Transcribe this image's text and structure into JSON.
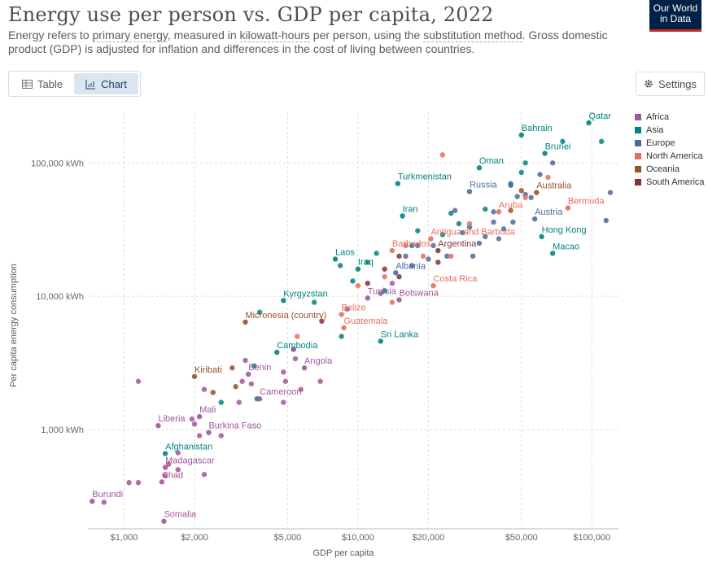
{
  "header": {
    "title": "Energy use per person vs. GDP per capita, 2022",
    "subtitle_parts": [
      "Energy refers to ",
      "primary energy",
      ", measured in ",
      "kilowatt-hours",
      " per person, using the ",
      "substitution method",
      ". Gross domestic product (GDP) is adjusted for inflation and differences in the cost of living between countries."
    ],
    "logo_line1": "Our World",
    "logo_line2": "in Data"
  },
  "tabs": [
    {
      "label": "Table",
      "icon": "table-icon",
      "active": false
    },
    {
      "label": "Chart",
      "icon": "chart-icon",
      "active": true
    }
  ],
  "settings_label": "Settings",
  "colors": {
    "Africa": "#a2559c",
    "Asia": "#00847e",
    "Europe": "#4c6a9c",
    "North America": "#e56e5a",
    "Oceania": "#9a5129",
    "South America": "#883039"
  },
  "chart_data": {
    "type": "scatter",
    "title": "Energy use per person vs. GDP per capita, 2022",
    "xlabel": "GDP per capita",
    "ylabel": "Per capita energy consumption",
    "x_scale": "log",
    "y_scale": "log",
    "xlim": [
      700,
      130000
    ],
    "ylim": [
      180,
      240000
    ],
    "x_ticks": [
      {
        "value": 1000,
        "label": "$1,000"
      },
      {
        "value": 2000,
        "label": "$2,000"
      },
      {
        "value": 5000,
        "label": "$5,000"
      },
      {
        "value": 10000,
        "label": "$10,000"
      },
      {
        "value": 20000,
        "label": "$20,000"
      },
      {
        "value": 50000,
        "label": "$50,000"
      },
      {
        "value": 100000,
        "label": "$100,000"
      }
    ],
    "y_ticks": [
      {
        "value": 1000,
        "label": "1,000 kWh"
      },
      {
        "value": 10000,
        "label": "10,000 kWh"
      },
      {
        "value": 100000,
        "label": "100,000 kWh"
      }
    ],
    "grid": true,
    "legend_position": "right",
    "legend": [
      "Africa",
      "Asia",
      "Europe",
      "North America",
      "Oceania",
      "South America"
    ],
    "labeled_points": [
      {
        "name": "Qatar",
        "region": "Asia",
        "x": 97000,
        "y": 200000
      },
      {
        "name": "Bahrain",
        "region": "Asia",
        "x": 50000,
        "y": 162000
      },
      {
        "name": "Brunei",
        "region": "Asia",
        "x": 63000,
        "y": 118000
      },
      {
        "name": "Oman",
        "region": "Asia",
        "x": 33000,
        "y": 92000
      },
      {
        "name": "Turkmenistan",
        "region": "Asia",
        "x": 14800,
        "y": 70000
      },
      {
        "name": "Russia",
        "region": "Europe",
        "x": 30000,
        "y": 61000
      },
      {
        "name": "Australia",
        "region": "Oceania",
        "x": 58000,
        "y": 60000
      },
      {
        "name": "Aruba",
        "region": "North America",
        "x": 40000,
        "y": 43000
      },
      {
        "name": "Bermuda",
        "region": "North America",
        "x": 79000,
        "y": 46000
      },
      {
        "name": "Austria",
        "region": "Europe",
        "x": 57000,
        "y": 38000
      },
      {
        "name": "Iran",
        "region": "Asia",
        "x": 15500,
        "y": 40000
      },
      {
        "name": "Antigua and Barbuda",
        "region": "North America",
        "x": 20500,
        "y": 27000
      },
      {
        "name": "Hong Kong",
        "region": "Asia",
        "x": 61000,
        "y": 28000
      },
      {
        "name": "Barbados",
        "region": "North America",
        "x": 14000,
        "y": 22000
      },
      {
        "name": "Argentina",
        "region": "South America",
        "x": 22000,
        "y": 22000
      },
      {
        "name": "Macao",
        "region": "Asia",
        "x": 68000,
        "y": 21000
      },
      {
        "name": "Laos",
        "region": "Asia",
        "x": 8000,
        "y": 19000
      },
      {
        "name": "Iraq",
        "region": "Asia",
        "x": 10000,
        "y": 16000
      },
      {
        "name": "Albania",
        "region": "Europe",
        "x": 14500,
        "y": 15000
      },
      {
        "name": "Costa Rica",
        "region": "North America",
        "x": 21000,
        "y": 12000
      },
      {
        "name": "Kyrgyzstan",
        "region": "Asia",
        "x": 4800,
        "y": 9300
      },
      {
        "name": "Tunisia",
        "region": "Africa",
        "x": 11000,
        "y": 9700
      },
      {
        "name": "Botswana",
        "region": "Africa",
        "x": 15000,
        "y": 9400
      },
      {
        "name": "Belize",
        "region": "North America",
        "x": 8500,
        "y": 7300
      },
      {
        "name": "Micronesia (country)",
        "region": "Oceania",
        "x": 3300,
        "y": 6400
      },
      {
        "name": "Guatemala",
        "region": "North America",
        "x": 8700,
        "y": 5800
      },
      {
        "name": "Sri Lanka",
        "region": "Asia",
        "x": 12500,
        "y": 4600
      },
      {
        "name": "Cambodia",
        "region": "Asia",
        "x": 4500,
        "y": 3800
      },
      {
        "name": "Angola",
        "region": "Africa",
        "x": 5900,
        "y": 2900
      },
      {
        "name": "Benin",
        "region": "Africa",
        "x": 3400,
        "y": 2600
      },
      {
        "name": "Kiribati",
        "region": "Oceania",
        "x": 2000,
        "y": 2500
      },
      {
        "name": "Cameroon",
        "region": "Africa",
        "x": 3800,
        "y": 1700
      },
      {
        "name": "Mali",
        "region": "Africa",
        "x": 2100,
        "y": 1250
      },
      {
        "name": "Liberia",
        "region": "Africa",
        "x": 1400,
        "y": 1070
      },
      {
        "name": "Burkina Faso",
        "region": "Africa",
        "x": 2300,
        "y": 950
      },
      {
        "name": "Afghanistan",
        "region": "Asia",
        "x": 1500,
        "y": 660
      },
      {
        "name": "Madagascar",
        "region": "Africa",
        "x": 1500,
        "y": 520
      },
      {
        "name": "Chad",
        "region": "Africa",
        "x": 1450,
        "y": 405
      },
      {
        "name": "Burundi",
        "region": "Africa",
        "x": 730,
        "y": 290
      },
      {
        "name": "Somalia",
        "region": "Africa",
        "x": 1480,
        "y": 205
      }
    ],
    "other_points": [
      {
        "region": "Asia",
        "x": 110000,
        "y": 145000
      },
      {
        "region": "Asia",
        "x": 75000,
        "y": 145000
      },
      {
        "region": "Asia",
        "x": 52000,
        "y": 100000
      },
      {
        "region": "Asia",
        "x": 50000,
        "y": 85000
      },
      {
        "region": "Asia",
        "x": 45000,
        "y": 68000
      },
      {
        "region": "Asia",
        "x": 35000,
        "y": 45000
      },
      {
        "region": "Asia",
        "x": 25000,
        "y": 42000
      },
      {
        "region": "Asia",
        "x": 18000,
        "y": 31000
      },
      {
        "region": "Asia",
        "x": 17000,
        "y": 24000
      },
      {
        "region": "Asia",
        "x": 12000,
        "y": 21000
      },
      {
        "region": "Asia",
        "x": 11000,
        "y": 18000
      },
      {
        "region": "Asia",
        "x": 9500,
        "y": 13000
      },
      {
        "region": "Asia",
        "x": 8400,
        "y": 17000
      },
      {
        "region": "Asia",
        "x": 6500,
        "y": 9000
      },
      {
        "region": "Asia",
        "x": 3800,
        "y": 7600
      },
      {
        "region": "Asia",
        "x": 3600,
        "y": 3000
      },
      {
        "region": "Asia",
        "x": 2600,
        "y": 1600
      },
      {
        "region": "Asia",
        "x": 3700,
        "y": 1700
      },
      {
        "region": "Asia",
        "x": 5300,
        "y": 4000
      },
      {
        "region": "Asia",
        "x": 8500,
        "y": 5000
      },
      {
        "region": "Asia",
        "x": 13000,
        "y": 11000
      },
      {
        "region": "Asia",
        "x": 23000,
        "y": 29000
      },
      {
        "region": "Asia",
        "x": 27000,
        "y": 35000
      },
      {
        "region": "Europe",
        "x": 120000,
        "y": 60000
      },
      {
        "region": "Europe",
        "x": 115000,
        "y": 37000
      },
      {
        "region": "Europe",
        "x": 68000,
        "y": 100000
      },
      {
        "region": "Europe",
        "x": 60000,
        "y": 82000
      },
      {
        "region": "Europe",
        "x": 55000,
        "y": 55000
      },
      {
        "region": "Europe",
        "x": 52000,
        "y": 58000
      },
      {
        "region": "Europe",
        "x": 46000,
        "y": 36000
      },
      {
        "region": "Europe",
        "x": 42000,
        "y": 32000
      },
      {
        "region": "Europe",
        "x": 40000,
        "y": 27000
      },
      {
        "region": "Europe",
        "x": 38000,
        "y": 36000
      },
      {
        "region": "Europe",
        "x": 35000,
        "y": 28000
      },
      {
        "region": "Europe",
        "x": 33000,
        "y": 25000
      },
      {
        "region": "Europe",
        "x": 31000,
        "y": 20000
      },
      {
        "region": "Europe",
        "x": 30000,
        "y": 33000
      },
      {
        "region": "Europe",
        "x": 28000,
        "y": 30000
      },
      {
        "region": "Europe",
        "x": 26000,
        "y": 44000
      },
      {
        "region": "Europe",
        "x": 24000,
        "y": 20000
      },
      {
        "region": "Europe",
        "x": 21000,
        "y": 24000
      },
      {
        "region": "Europe",
        "x": 20000,
        "y": 19000
      },
      {
        "region": "Europe",
        "x": 18000,
        "y": 24000
      },
      {
        "region": "Europe",
        "x": 17000,
        "y": 17000
      },
      {
        "region": "Europe",
        "x": 16000,
        "y": 20000
      },
      {
        "region": "Europe",
        "x": 45000,
        "y": 70000
      },
      {
        "region": "Europe",
        "x": 48000,
        "y": 56000
      },
      {
        "region": "Europe",
        "x": 38000,
        "y": 43000
      },
      {
        "region": "North America",
        "x": 23000,
        "y": 115000
      },
      {
        "region": "North America",
        "x": 65000,
        "y": 78000
      },
      {
        "region": "North America",
        "x": 52000,
        "y": 55000
      },
      {
        "region": "North America",
        "x": 30000,
        "y": 35000
      },
      {
        "region": "North America",
        "x": 25000,
        "y": 20000
      },
      {
        "region": "North America",
        "x": 19000,
        "y": 20000
      },
      {
        "region": "North America",
        "x": 16000,
        "y": 24000
      },
      {
        "region": "North America",
        "x": 13000,
        "y": 14000
      },
      {
        "region": "North America",
        "x": 10000,
        "y": 12000
      },
      {
        "region": "North America",
        "x": 14000,
        "y": 9000
      },
      {
        "region": "North America",
        "x": 5500,
        "y": 5000
      },
      {
        "region": "Oceania",
        "x": 50000,
        "y": 62000
      },
      {
        "region": "Oceania",
        "x": 45000,
        "y": 44000
      },
      {
        "region": "Oceania",
        "x": 2900,
        "y": 2900
      },
      {
        "region": "Oceania",
        "x": 2400,
        "y": 1900
      },
      {
        "region": "Oceania",
        "x": 3000,
        "y": 2100
      },
      {
        "region": "South America",
        "x": 15000,
        "y": 20000
      },
      {
        "region": "South America",
        "x": 15000,
        "y": 14000
      },
      {
        "region": "South America",
        "x": 22000,
        "y": 18000
      },
      {
        "region": "South America",
        "x": 13000,
        "y": 16000
      },
      {
        "region": "South America",
        "x": 11000,
        "y": 12500
      },
      {
        "region": "South America",
        "x": 7000,
        "y": 6500
      },
      {
        "region": "Africa",
        "x": 1150,
        "y": 2300
      },
      {
        "region": "Africa",
        "x": 1950,
        "y": 1200
      },
      {
        "region": "Africa",
        "x": 2000,
        "y": 1100
      },
      {
        "region": "Africa",
        "x": 2100,
        "y": 900
      },
      {
        "region": "Africa",
        "x": 2600,
        "y": 900
      },
      {
        "region": "Africa",
        "x": 2200,
        "y": 2000
      },
      {
        "region": "Africa",
        "x": 3300,
        "y": 3300
      },
      {
        "region": "Africa",
        "x": 3200,
        "y": 2300
      },
      {
        "region": "Africa",
        "x": 3500,
        "y": 2200
      },
      {
        "region": "Africa",
        "x": 4800,
        "y": 2700
      },
      {
        "region": "Africa",
        "x": 4900,
        "y": 2300
      },
      {
        "region": "Africa",
        "x": 5400,
        "y": 3400
      },
      {
        "region": "Africa",
        "x": 5300,
        "y": 4000
      },
      {
        "region": "Africa",
        "x": 5700,
        "y": 2000
      },
      {
        "region": "Africa",
        "x": 3100,
        "y": 1600
      },
      {
        "region": "Africa",
        "x": 4800,
        "y": 1600
      },
      {
        "region": "Africa",
        "x": 6900,
        "y": 2300
      },
      {
        "region": "Africa",
        "x": 1050,
        "y": 400
      },
      {
        "region": "Africa",
        "x": 1150,
        "y": 400
      },
      {
        "region": "Africa",
        "x": 1550,
        "y": 550
      },
      {
        "region": "Africa",
        "x": 1700,
        "y": 500
      },
      {
        "region": "Africa",
        "x": 1500,
        "y": 450
      },
      {
        "region": "Africa",
        "x": 820,
        "y": 285
      },
      {
        "region": "Africa",
        "x": 2200,
        "y": 460
      },
      {
        "region": "Africa",
        "x": 1700,
        "y": 670
      },
      {
        "region": "Africa",
        "x": 9000,
        "y": 8000
      },
      {
        "region": "Africa",
        "x": 12500,
        "y": 10500
      },
      {
        "region": "Africa",
        "x": 14000,
        "y": 12500
      }
    ]
  }
}
